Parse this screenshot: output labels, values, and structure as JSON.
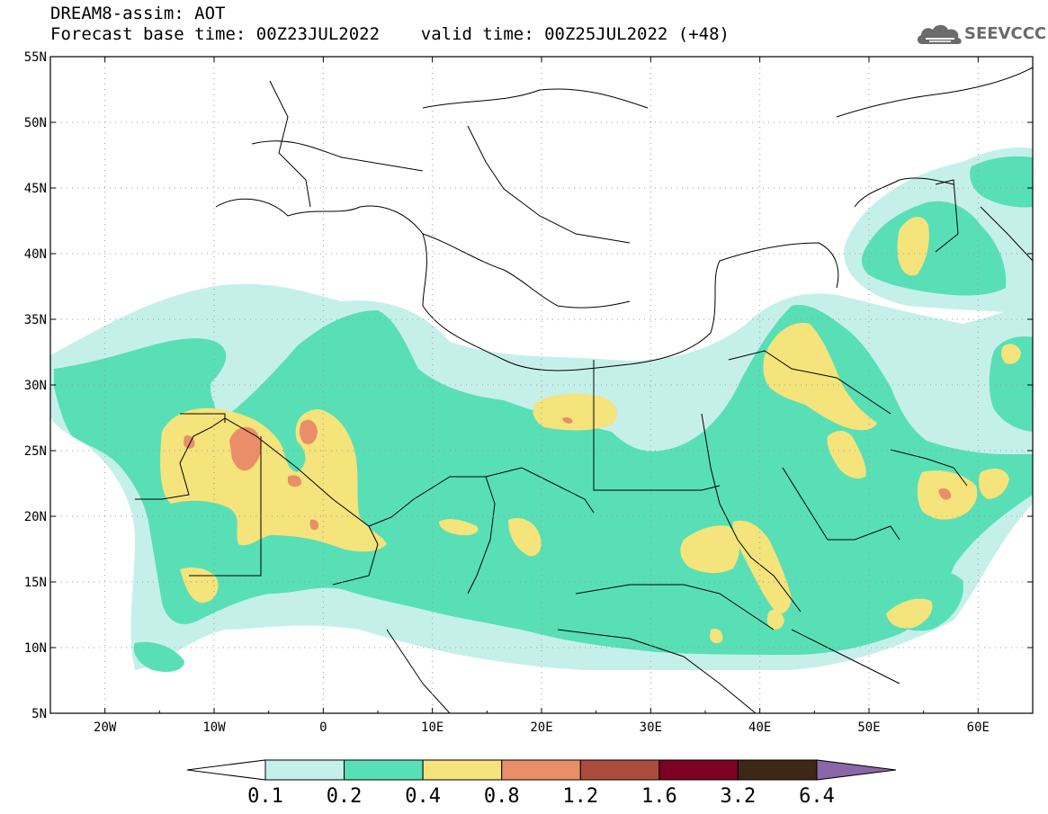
{
  "header": {
    "title_line1": "DREAM8-assim: AOT",
    "title_line2": "Forecast base time: 00Z23JUL2022    valid time: 00Z25JUL2022 (+48)"
  },
  "logo": {
    "text": "SEEVCCC",
    "icon": "cloud-icon"
  },
  "map": {
    "lon_range": [
      -25,
      65
    ],
    "lat_range": [
      5,
      55
    ],
    "lat_labels": [
      "55N",
      "50N",
      "45N",
      "40N",
      "35N",
      "30N",
      "25N",
      "20N",
      "15N",
      "10N",
      "5N"
    ],
    "lon_labels": [
      "20W",
      "10W",
      "0",
      "10E",
      "20E",
      "30E",
      "40E",
      "50E",
      "60E"
    ],
    "grid": "dotted"
  },
  "colorbar": {
    "labels": [
      "0.1",
      "0.2",
      "0.4",
      "0.8",
      "1.2",
      "1.6",
      "3.2",
      "6.4"
    ],
    "colors": [
      "#ffffff",
      "#c5f0ea",
      "#58dfb6",
      "#f5e37b",
      "#e98e68",
      "#ab4b3b",
      "#7d0122",
      "#3d2818",
      "#8b67a9"
    ]
  }
}
